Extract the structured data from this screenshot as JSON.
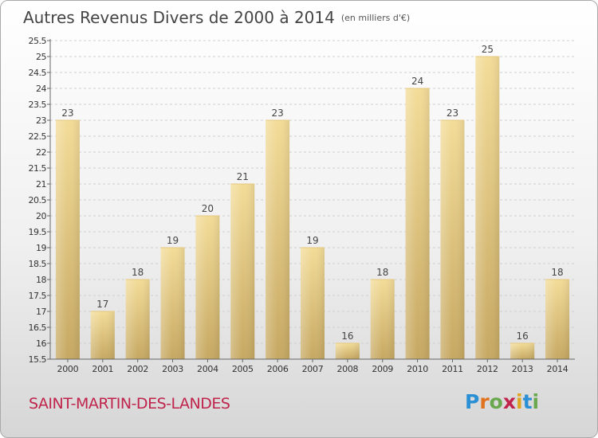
{
  "title": {
    "main": "Autres Revenus Divers de 2000 à 2014",
    "unit": "(en milliers d'€)"
  },
  "place_name": "SAINT-MARTIN-DES-LANDES",
  "logo": {
    "text": "Proxiti",
    "letters": [
      {
        "char": "P",
        "color": "#2a8fd4"
      },
      {
        "char": "r",
        "color": "#e0731e"
      },
      {
        "char": "o",
        "color": "#6aa84f"
      },
      {
        "char": "x",
        "color": "#c0244c"
      },
      {
        "char": "i",
        "color": "#e0a51e"
      },
      {
        "char": "t",
        "color": "#2a8fd4"
      },
      {
        "char": "i",
        "color": "#6aa84f"
      }
    ]
  },
  "chart_data": {
    "type": "bar",
    "categories": [
      "2000",
      "2001",
      "2002",
      "2003",
      "2004",
      "2005",
      "2006",
      "2007",
      "2008",
      "2009",
      "2010",
      "2011",
      "2012",
      "2013",
      "2014"
    ],
    "values": [
      23,
      17,
      18,
      19,
      20,
      21,
      23,
      19,
      16,
      18,
      24,
      23,
      25,
      16,
      18
    ],
    "ylim": [
      15.5,
      25.5
    ],
    "yticks": [
      "15.5",
      "16",
      "16.5",
      "17",
      "17.5",
      "18",
      "18.5",
      "19",
      "19.5",
      "20",
      "20.5",
      "21",
      "21.5",
      "22",
      "22.5",
      "23",
      "23.5",
      "24",
      "24.5",
      "25",
      "25.5"
    ],
    "grid": true,
    "bar_color_top": "#f3dc98",
    "bar_color_bottom": "#c6a862"
  }
}
